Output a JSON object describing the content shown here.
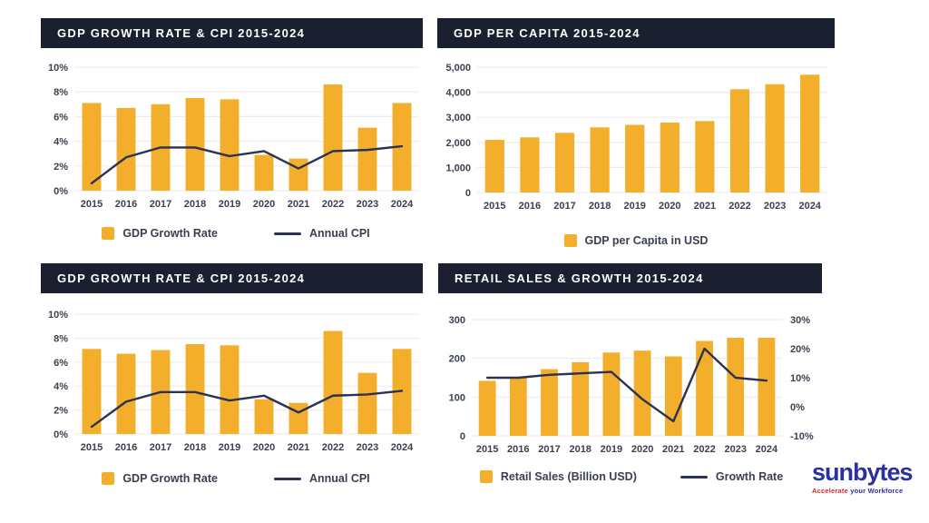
{
  "colors": {
    "page_bg": "#ffffff",
    "header_bg": "#1a2030",
    "header_text": "#ffffff",
    "bar": "#f3af2b",
    "line": "#2b3254",
    "grid": "#ececea",
    "axis_text": "#3a4051",
    "logo_blue": "#2a2fa2",
    "logo_red": "#d6252b"
  },
  "logo": {
    "name": "sunbytes",
    "tagline_accent": "Accelerate",
    "tagline_rest": "your Workforce"
  },
  "chart_data": [
    {
      "type": "bar",
      "title": "GDP GROWTH RATE & CPI 2015-2024",
      "categories": [
        "2015",
        "2016",
        "2017",
        "2018",
        "2019",
        "2020",
        "2021",
        "2022",
        "2023",
        "2024"
      ],
      "series": [
        {
          "name": "GDP Growth Rate",
          "type": "bar",
          "axis": "left",
          "values": [
            7.1,
            6.7,
            7.0,
            7.5,
            7.4,
            2.9,
            2.6,
            8.6,
            5.1,
            7.1
          ]
        },
        {
          "name": "Annual CPI",
          "type": "line",
          "axis": "left",
          "values": [
            0.6,
            2.7,
            3.5,
            3.5,
            2.8,
            3.2,
            1.8,
            3.2,
            3.3,
            3.6
          ]
        }
      ],
      "xlabel": "",
      "ylabel": "",
      "ylim": [
        0,
        10
      ],
      "yticks": [
        {
          "value": 10,
          "label": "10%"
        },
        {
          "value": 8,
          "label": "8%"
        },
        {
          "value": 6,
          "label": "6%"
        },
        {
          "value": 4,
          "label": "4%"
        },
        {
          "value": 2,
          "label": "2%"
        },
        {
          "value": 0,
          "label": "0%"
        }
      ],
      "grid": true,
      "legend_position": "bottom"
    },
    {
      "type": "bar",
      "title": "GDP PER CAPITA 2015-2024",
      "categories": [
        "2015",
        "2016",
        "2017",
        "2018",
        "2019",
        "2020",
        "2021",
        "2022",
        "2023",
        "2024"
      ],
      "series": [
        {
          "name": "GDP per Capita in USD",
          "type": "bar",
          "axis": "left",
          "values": [
            2100,
            2200,
            2380,
            2600,
            2700,
            2790,
            2850,
            4120,
            4320,
            4700
          ]
        }
      ],
      "xlabel": "",
      "ylabel": "",
      "ylim": [
        0,
        5000
      ],
      "yticks": [
        {
          "value": 5000,
          "label": "5,000"
        },
        {
          "value": 4000,
          "label": "4,000"
        },
        {
          "value": 3000,
          "label": "3,000"
        },
        {
          "value": 2000,
          "label": "2,000"
        },
        {
          "value": 1000,
          "label": "1,000"
        },
        {
          "value": 0,
          "label": "0"
        }
      ],
      "grid": true,
      "legend_position": "bottom"
    },
    {
      "type": "bar",
      "title": "GDP GROWTH RATE & CPI 2015-2024",
      "categories": [
        "2015",
        "2016",
        "2017",
        "2018",
        "2019",
        "2020",
        "2021",
        "2022",
        "2023",
        "2024"
      ],
      "series": [
        {
          "name": "GDP Growth Rate",
          "type": "bar",
          "axis": "left",
          "values": [
            7.1,
            6.7,
            7.0,
            7.5,
            7.4,
            2.9,
            2.6,
            8.6,
            5.1,
            7.1
          ]
        },
        {
          "name": "Annual CPI",
          "type": "line",
          "axis": "left",
          "values": [
            0.6,
            2.7,
            3.5,
            3.5,
            2.8,
            3.2,
            1.8,
            3.2,
            3.3,
            3.6
          ]
        }
      ],
      "xlabel": "",
      "ylabel": "",
      "ylim": [
        0,
        10
      ],
      "yticks": [
        {
          "value": 10,
          "label": "10%"
        },
        {
          "value": 8,
          "label": "8%"
        },
        {
          "value": 6,
          "label": "6%"
        },
        {
          "value": 4,
          "label": "4%"
        },
        {
          "value": 2,
          "label": "2%"
        },
        {
          "value": 0,
          "label": "0%"
        }
      ],
      "grid": true,
      "legend_position": "bottom"
    },
    {
      "type": "bar",
      "title": "RETAIL SALES & GROWTH 2015-2024",
      "categories": [
        "2015",
        "2016",
        "2017",
        "2018",
        "2019",
        "2020",
        "2021",
        "2022",
        "2023",
        "2024"
      ],
      "series": [
        {
          "name": "Retail Sales (Billion USD)",
          "type": "bar",
          "axis": "left",
          "values": [
            142,
            152,
            172,
            190,
            215,
            220,
            205,
            245,
            253,
            253
          ]
        },
        {
          "name": "Growth Rate",
          "type": "line",
          "axis": "right",
          "values": [
            10,
            10,
            11,
            11.5,
            12,
            2.6,
            -5,
            20,
            10,
            9
          ]
        }
      ],
      "xlabel": "",
      "ylabel": "",
      "ylim": [
        0,
        300
      ],
      "yticks": [
        {
          "value": 300,
          "label": "300"
        },
        {
          "value": 200,
          "label": "200"
        },
        {
          "value": 100,
          "label": "100"
        },
        {
          "value": 0,
          "label": "0"
        }
      ],
      "y2lim": [
        -10,
        30
      ],
      "y2ticks": [
        {
          "value": 30,
          "label": "30%"
        },
        {
          "value": 20,
          "label": "20%"
        },
        {
          "value": 10,
          "label": "10%"
        },
        {
          "value": 0,
          "label": "0%"
        },
        {
          "value": -10,
          "label": "-10%"
        }
      ],
      "grid": true,
      "legend_position": "bottom"
    }
  ]
}
